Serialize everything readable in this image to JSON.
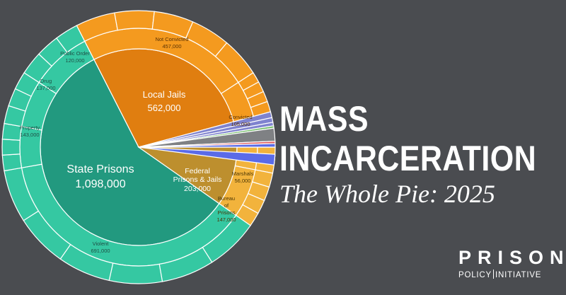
{
  "title": {
    "line1": "MASS",
    "line2": "INCARCERATION",
    "subtitle": "The Whole Pie: 2025"
  },
  "logo": {
    "top": "PRISON",
    "bottom_left": "POLICY",
    "bottom_right": "INITIATIVE"
  },
  "colors": {
    "state": "#22997f",
    "state_outer": "#35c8a2",
    "jails": "#e07e10",
    "jails_outer": "#f49a1f",
    "federal": "#bd8f2e",
    "federal_outer": "#f2b33c",
    "other_gray": "#7f8184",
    "other_purple": "#7f83cf",
    "other_blue": "#5a6be8",
    "other_green": "#7ac070",
    "border": "#ffffff"
  },
  "chart_data": {
    "type": "pie",
    "title": "",
    "inner": [
      {
        "name": "State Prisons",
        "value": "1,098,000",
        "v": 1098000
      },
      {
        "name": "Local Jails",
        "value": "562,000",
        "v": 562000
      },
      {
        "name": "Federal Prisons & Jails",
        "value": "203,000",
        "v": 203000
      }
    ],
    "outer": [
      {
        "name": "Violent",
        "value": "691,000",
        "parent": "State Prisons"
      },
      {
        "name": "Property",
        "value": "143,000",
        "parent": "State Prisons"
      },
      {
        "name": "Drug",
        "value": "137,000",
        "parent": "State Prisons"
      },
      {
        "name": "Public Order",
        "value": "120,000",
        "parent": "State Prisons"
      },
      {
        "name": "Not Convicted",
        "value": "457,000",
        "parent": "Local Jails"
      },
      {
        "name": "Convicted",
        "value": "105,000",
        "parent": "Local Jails"
      },
      {
        "name": "Marshals",
        "value": "56,000",
        "parent": "Federal Prisons & Jails"
      },
      {
        "name": "Bureau of Prisons",
        "value": "147,000",
        "parent": "Federal Prisons & Jails"
      }
    ]
  }
}
